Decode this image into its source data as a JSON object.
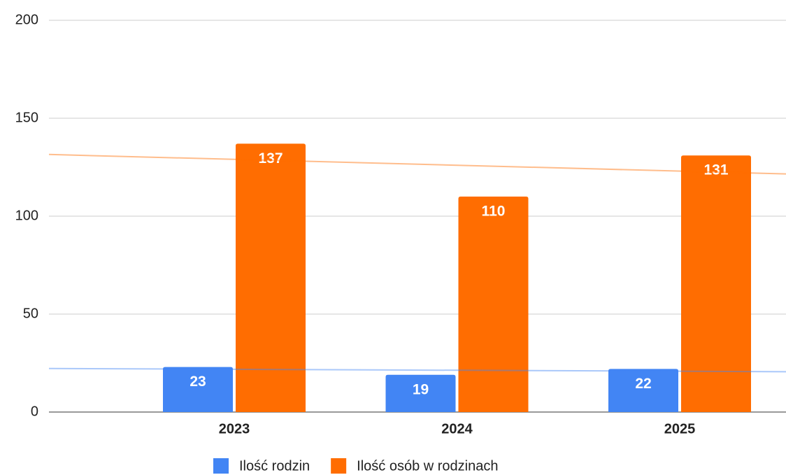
{
  "chart_data": {
    "type": "bar",
    "categories": [
      "2023",
      "2024",
      "2025"
    ],
    "series": [
      {
        "name": "Ilość rodzin",
        "color": "#4285f4",
        "values": [
          23,
          19,
          22
        ]
      },
      {
        "name": "Ilość osób w rodzinach",
        "color": "#ff6d01",
        "values": [
          137,
          110,
          131
        ]
      }
    ],
    "ylim": [
      0,
      200
    ],
    "yticks": [
      0,
      50,
      100,
      150,
      200
    ],
    "grid": true,
    "trendline": true,
    "legend": "bottom"
  }
}
